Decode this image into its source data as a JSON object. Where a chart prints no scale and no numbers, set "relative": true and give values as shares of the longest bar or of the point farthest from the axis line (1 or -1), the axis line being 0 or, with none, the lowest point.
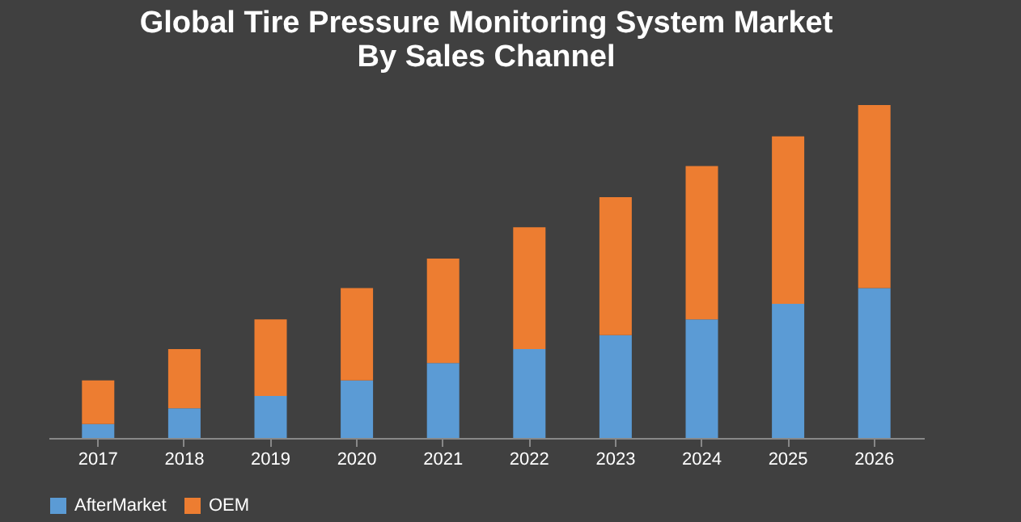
{
  "chart_data": {
    "type": "bar",
    "title": "Global Tire Pressure Monitoring System Market\nBy Sales Channel",
    "stacked": true,
    "relative": true,
    "legend": "bottom",
    "grid": false,
    "categories": [
      "2017",
      "2018",
      "2019",
      "2020",
      "2021",
      "2022",
      "2023",
      "2024",
      "2025",
      "2026"
    ],
    "series": [
      {
        "name": "AfterMarket",
        "color": "#5b9bd5",
        "values": [
          0.042,
          0.089,
          0.126,
          0.173,
          0.225,
          0.267,
          0.309,
          0.356,
          0.403,
          0.45
        ]
      },
      {
        "name": "OEM",
        "color": "#ed7d31",
        "values": [
          0.131,
          0.178,
          0.23,
          0.277,
          0.314,
          0.366,
          0.414,
          0.461,
          0.503,
          0.55
        ]
      }
    ]
  }
}
